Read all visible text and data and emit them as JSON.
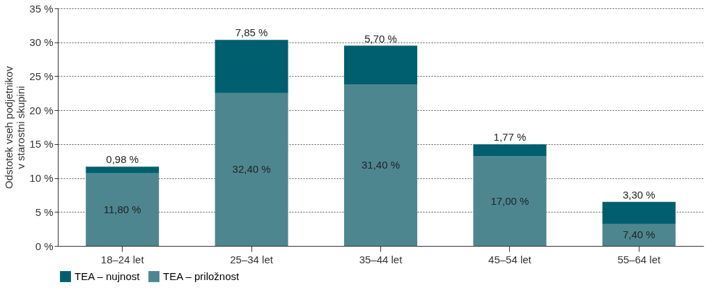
{
  "chart_data": {
    "type": "bar",
    "stacked": true,
    "ylabel": "Odstotek vseh podjetnikov\nv starostni skupini",
    "categories": [
      "18–24 let",
      "25–34 let",
      "35–44 let",
      "45–54 let",
      "55–64 let"
    ],
    "series": [
      {
        "name": "TEA – priložnost",
        "color": "#4e8690",
        "values": [
          10.7,
          22.5,
          23.8,
          13.2,
          3.2
        ]
      },
      {
        "name": "TEA – nujnost",
        "color": "#005f6e",
        "values": [
          0.98,
          7.85,
          5.7,
          1.77,
          3.3
        ],
        "value_labels": [
          "0,98 %",
          "7,85 %",
          "5,70 %",
          "1,77 %",
          "3,30 %"
        ]
      }
    ],
    "annotations": [
      "11,80 %",
      "32,40 %",
      "31,40 %",
      "17,00 %",
      "7,40 %"
    ],
    "ylim": [
      0,
      35
    ],
    "yticks": [
      {
        "value": 0,
        "label": "0 %"
      },
      {
        "value": 5,
        "label": "5 %"
      },
      {
        "value": 10,
        "label": "10 %"
      },
      {
        "value": 15,
        "label": "15 %"
      },
      {
        "value": 20,
        "label": "20 %"
      },
      {
        "value": 25,
        "label": "25 %"
      },
      {
        "value": 30,
        "label": "30 %"
      },
      {
        "value": 35,
        "label": "35 %"
      }
    ],
    "grid": "y",
    "legend": "bottom"
  }
}
